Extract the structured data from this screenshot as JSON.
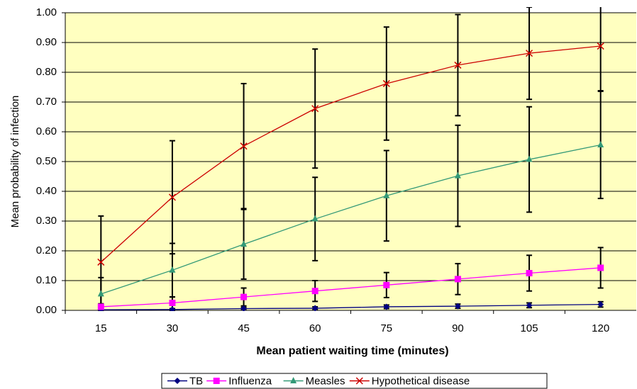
{
  "chart_data": {
    "type": "line",
    "x_label": "Mean patient waiting time (minutes)",
    "y_label": "Mean probability of infection",
    "categories": [
      15,
      30,
      45,
      60,
      75,
      90,
      105,
      120
    ],
    "ylim": [
      0,
      1
    ],
    "yticks": [
      {
        "value": 0,
        "label": "0.00"
      },
      {
        "value": 0.1,
        "label": "0.10"
      },
      {
        "value": 0.2,
        "label": "0.20"
      },
      {
        "value": 0.3,
        "label": "0.30"
      },
      {
        "value": 0.4,
        "label": "0.40"
      },
      {
        "value": 0.5,
        "label": "0.50"
      },
      {
        "value": 0.6,
        "label": "0.60"
      },
      {
        "value": 0.7,
        "label": "0.70"
      },
      {
        "value": 0.8,
        "label": "0.80"
      },
      {
        "value": 0.9,
        "label": "0.90"
      },
      {
        "value": 1,
        "label": "1.00"
      }
    ],
    "grid": true,
    "legend": "bottom",
    "series": [
      {
        "name": "TB",
        "color": "#000080",
        "marker": "diamond",
        "values": [
          0.002,
          0.003,
          0.006,
          0.007,
          0.012,
          0.014,
          0.017,
          0.02
        ],
        "errors": [
          0.002,
          0.003,
          0.004,
          0.005,
          0.006,
          0.007,
          0.008,
          0.009
        ]
      },
      {
        "name": "Influenza",
        "color": "#ff00ff",
        "marker": "square",
        "values": [
          0.012,
          0.025,
          0.045,
          0.065,
          0.085,
          0.105,
          0.125,
          0.143
        ],
        "errors": [
          0.01,
          0.02,
          0.03,
          0.035,
          0.042,
          0.052,
          0.06,
          0.068
        ]
      },
      {
        "name": "Measles",
        "color": "#339977",
        "marker": "triangle",
        "values": [
          0.055,
          0.135,
          0.222,
          0.307,
          0.385,
          0.452,
          0.507,
          0.556
        ],
        "errors": [
          0.055,
          0.09,
          0.117,
          0.14,
          0.152,
          0.17,
          0.177,
          0.18
        ]
      },
      {
        "name": "Hypothetical disease",
        "color": "#cc0000",
        "marker": "x",
        "values": [
          0.162,
          0.38,
          0.552,
          0.678,
          0.762,
          0.824,
          0.864,
          0.888
        ],
        "errors": [
          0.155,
          0.19,
          0.21,
          0.2,
          0.19,
          0.17,
          0.155,
          0.15
        ]
      }
    ]
  }
}
